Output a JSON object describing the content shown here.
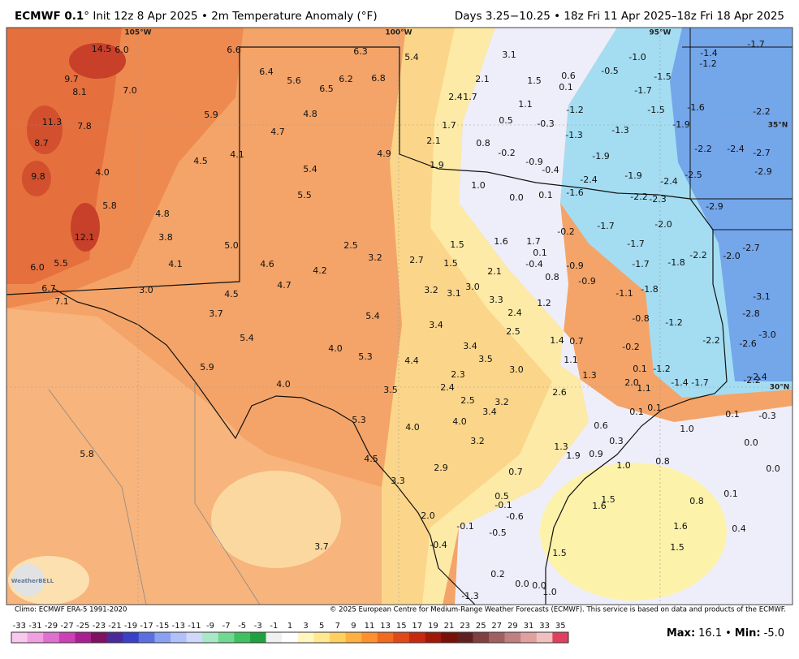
{
  "header": {
    "title_bold": "ECMWF 0.1",
    "title_rest": "° Init 12z 8 Apr 2025 • 2m Temperature Anomaly (°F)",
    "valid": "Days 3.25−10.25 • 18z Fri 11 Apr 2025–18z Fri 18 Apr 2025"
  },
  "map": {
    "grid_labels": [
      "105°W",
      "100°W",
      "95°W",
      "35°N",
      "30°N"
    ],
    "watermark": "WeatherBELL",
    "anomaly_labels": [
      "14.5",
      "6.0",
      "6.6",
      "6.3",
      "5.4",
      "3.1",
      "-1.7",
      "-1.4",
      "-1.0",
      "-1.2",
      "6.4",
      "5.6",
      "6.2",
      "6.8",
      "9.7",
      "2.1",
      "1.5",
      "0.6",
      "-0.5",
      "-1.5",
      "8.1",
      "7.0",
      "6.5",
      "0.1",
      "-1.7",
      "2.4",
      "1.7",
      "4.8",
      "1.1",
      "-1.2",
      "-1.5",
      "-1.6",
      "-2.2",
      "5.9",
      "11.3",
      "7.8",
      "1.7",
      "0.5",
      "-0.3",
      "-1.9",
      "4.7",
      "-1.3",
      "-1.3",
      "8.7",
      "2.1",
      "0.8",
      "-0.2",
      "-2.2",
      "-2.4",
      "-2.7",
      "4.1",
      "4.9",
      "-1.9",
      "4.5",
      "1.9",
      "-0.9",
      "-0.4",
      "-2.5",
      "-2.9",
      "9.8",
      "4.0",
      "5.4",
      "-2.4",
      "-1.9",
      "-2.4",
      "1.0",
      "-1.6",
      "5.5",
      "0.0",
      "0.1",
      "-2.2",
      "-2.3",
      "-2.9",
      "5.8",
      "4.8",
      "-1.7",
      "-2.0",
      "12.1",
      "3.8",
      "1.6",
      "1.7",
      "1.5",
      "2.5",
      "5.0",
      "-0.2",
      "-1.7",
      "-2.7",
      "0.1",
      "-2.2",
      "-2.0",
      "3.2",
      "2.7",
      "4.1",
      "4.6",
      "1.5",
      "-0.4",
      "-0.9",
      "-1.7",
      "-1.8",
      "6.0",
      "5.5",
      "4.2",
      "2.1",
      "0.8",
      "-0.9",
      "4.7",
      "3.2",
      "3.1",
      "3.0",
      "6.7",
      "3.0",
      "4.5",
      "-1.1",
      "-1.8",
      "-3.1",
      "7.1",
      "3.3",
      "1.2",
      "-2.8",
      "3.7",
      "5.4",
      "2.4",
      "-0.8",
      "-1.2",
      "3.4",
      "2.5",
      "-3.0",
      "5.4",
      "1.4",
      "0.7",
      "-2.2",
      "-2.6",
      "4.0",
      "3.4",
      "-0.2",
      "5.3",
      "4.4",
      "3.5",
      "1.1",
      "5.9",
      "3.0",
      "0.1",
      "-1.2",
      "-2.4",
      "2.3",
      "1.3",
      "-1.4",
      "-1.7",
      "-2.2",
      "2.0",
      "1.1",
      "4.0",
      "3.5",
      "2.4",
      "2.6",
      "2.5",
      "3.2",
      "0.1",
      "0.1",
      "3.4",
      "0.1",
      "-0.3",
      "5.3",
      "4.0",
      "4.0",
      "0.6",
      "1.0",
      "0.3",
      "3.2",
      "0.0",
      "1.3",
      "5.8",
      "1.9",
      "0.9",
      "4.5",
      "1.0",
      "0.8",
      "2.9",
      "0.0",
      "0.7",
      "3.3",
      "0.1",
      "0.5",
      "-0.1",
      "1.5",
      "1.6",
      "0.8",
      "-0.6",
      "2.0",
      "-0.1",
      "-0.5",
      "1.6",
      "0.4",
      "3.7",
      "-0.4",
      "1.5",
      "1.5",
      "0.2",
      "0.0",
      "0.0",
      "1.0",
      "-1.3"
    ]
  },
  "footer": {
    "climo": "Climo: ECMWF ERA-5 1991-2020",
    "copyright": "© 2025 European Centre for Medium-Range Weather Forecasts (ECMWF). This service is based on data and products of the ECMWF.",
    "colorbar_ticks": [
      -33,
      -31,
      -29,
      -27,
      -25,
      -23,
      -21,
      -19,
      -17,
      -15,
      -13,
      -11,
      -9,
      -7,
      -5,
      -3,
      -1,
      1,
      3,
      5,
      7,
      9,
      11,
      13,
      15,
      17,
      19,
      21,
      23,
      25,
      27,
      29,
      31,
      33,
      35
    ],
    "max_label": "Max:",
    "max_value": "16.1",
    "separator": "•",
    "min_label": "Min:",
    "min_value": "-5.0"
  }
}
